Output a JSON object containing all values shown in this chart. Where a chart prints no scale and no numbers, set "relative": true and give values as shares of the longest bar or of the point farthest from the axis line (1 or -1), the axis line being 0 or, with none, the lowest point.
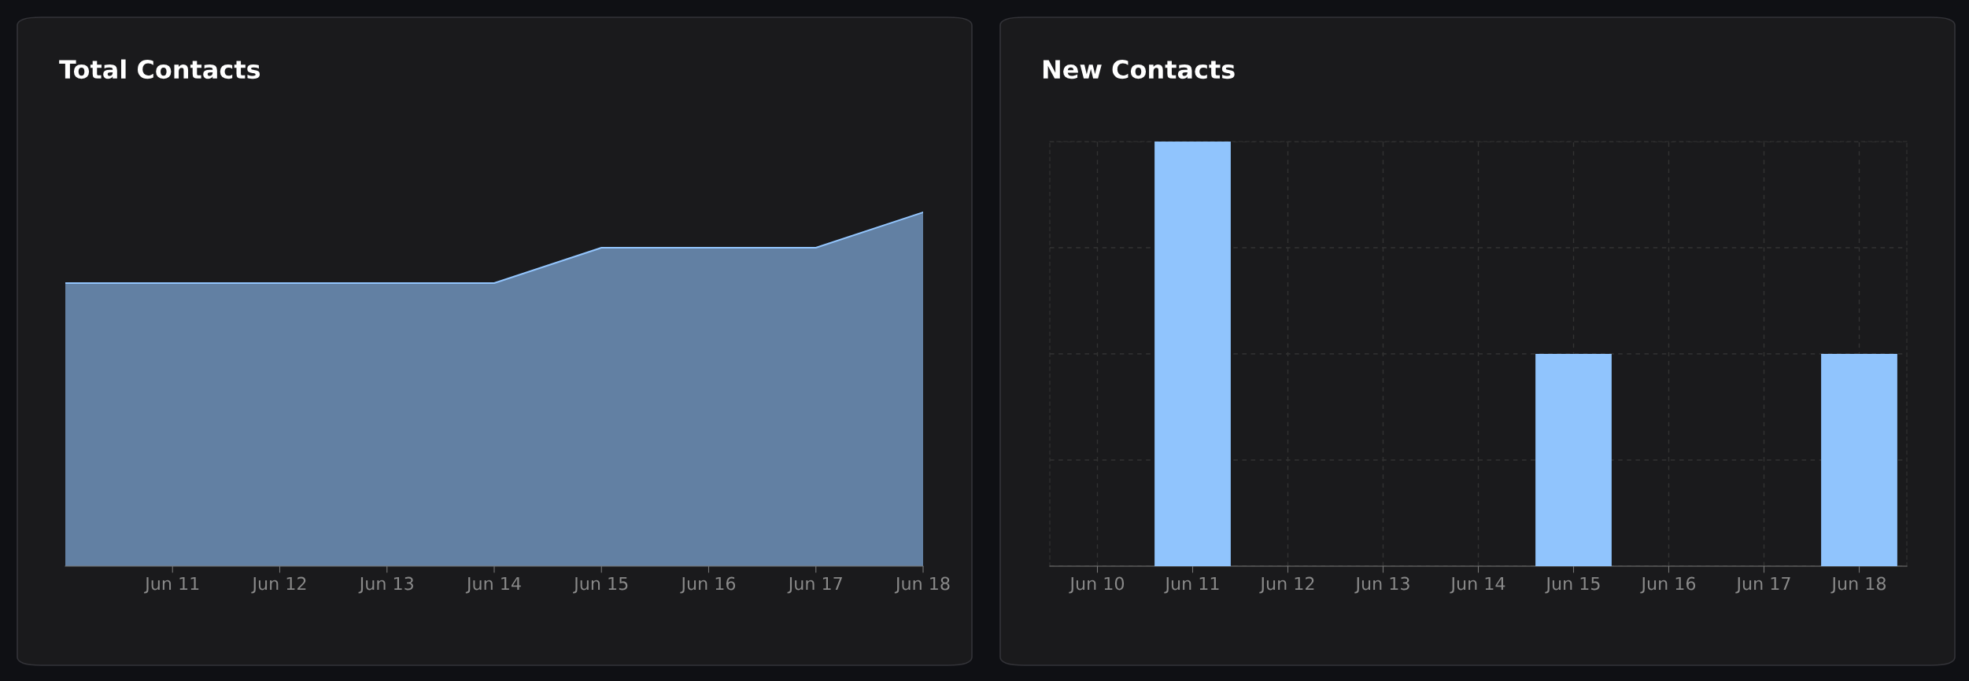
{
  "chart_data": [
    {
      "type": "area",
      "title": "Total Contacts",
      "relative": true,
      "categories": [
        null,
        "Jun 11",
        "Jun 12",
        "Jun 13",
        "Jun 14",
        "Jun 15",
        "Jun 16",
        "Jun 17",
        "Jun 18"
      ],
      "series": [
        {
          "color": "#93c5fd",
          "values": [
            0.8,
            0.8,
            0.8,
            0.8,
            0.8,
            0.9,
            0.9,
            0.9,
            1
          ]
        }
      ],
      "grid": false,
      "legend": false
    },
    {
      "type": "bar",
      "title": "New Contacts",
      "relative": true,
      "categories": [
        "Jun 10",
        "Jun 11",
        "Jun 12",
        "Jun 13",
        "Jun 14",
        "Jun 15",
        "Jun 16",
        "Jun 17",
        "Jun 18"
      ],
      "series": [
        {
          "color": "#90c4fd",
          "values": [
            0,
            1,
            0,
            0,
            0,
            0.5,
            0,
            0,
            0.5
          ]
        }
      ],
      "grid": true,
      "legend": false
    }
  ]
}
